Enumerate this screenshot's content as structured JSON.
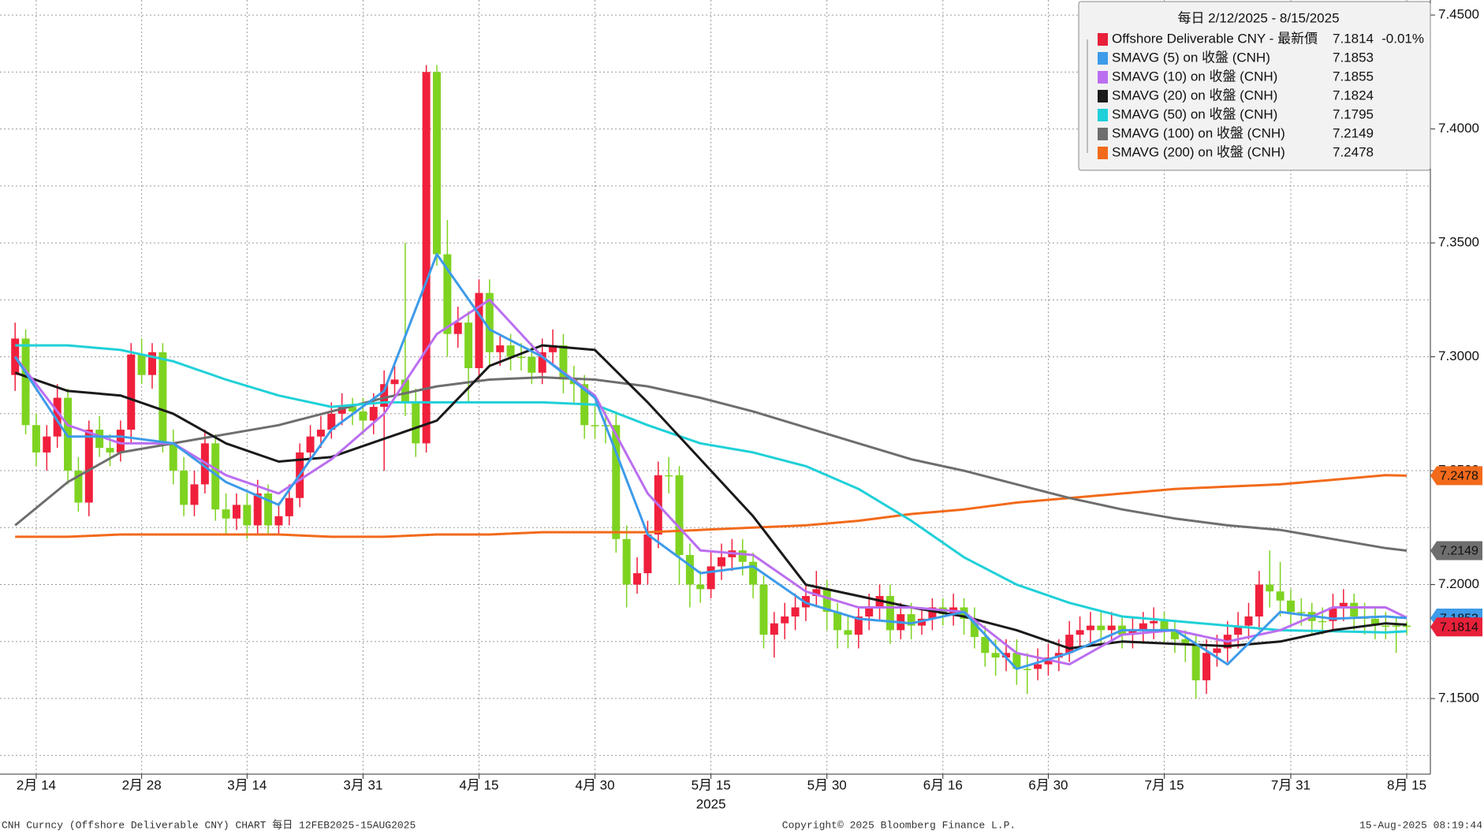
{
  "chart_data": {
    "type": "candlestick",
    "title": "每日 2/12/2025 - 8/15/2025",
    "name": "Offshore Deliverable CNY - 最新價",
    "change": "-0.01%",
    "color": "#e8203a",
    "up_color": "#f0203c",
    "down_color": "#7ed321",
    "x": [
      "2025-02-12",
      "2025-02-13",
      "2025-02-14",
      "2025-02-17",
      "2025-02-18",
      "2025-02-19",
      "2025-02-20",
      "2025-02-21",
      "2025-02-24",
      "2025-02-25",
      "2025-02-26",
      "2025-02-27",
      "2025-02-28",
      "2025-03-03",
      "2025-03-04",
      "2025-03-05",
      "2025-03-06",
      "2025-03-07",
      "2025-03-10",
      "2025-03-11",
      "2025-03-12",
      "2025-03-13",
      "2025-03-14",
      "2025-03-17",
      "2025-03-18",
      "2025-03-19",
      "2025-03-20",
      "2025-03-21",
      "2025-03-24",
      "2025-03-25",
      "2025-03-26",
      "2025-03-27",
      "2025-03-28",
      "2025-03-31",
      "2025-04-01",
      "2025-04-02",
      "2025-04-03",
      "2025-04-04",
      "2025-04-07",
      "2025-04-08",
      "2025-04-09",
      "2025-04-10",
      "2025-04-11",
      "2025-04-14",
      "2025-04-15",
      "2025-04-16",
      "2025-04-17",
      "2025-04-18",
      "2025-04-21",
      "2025-04-22",
      "2025-04-23",
      "2025-04-24",
      "2025-04-25",
      "2025-04-28",
      "2025-04-29",
      "2025-04-30",
      "2025-05-01",
      "2025-05-02",
      "2025-05-05",
      "2025-05-06",
      "2025-05-07",
      "2025-05-08",
      "2025-05-09",
      "2025-05-12",
      "2025-05-13",
      "2025-05-14",
      "2025-05-15",
      "2025-05-16",
      "2025-05-19",
      "2025-05-20",
      "2025-05-21",
      "2025-05-22",
      "2025-05-23",
      "2025-05-26",
      "2025-05-27",
      "2025-05-28",
      "2025-05-29",
      "2025-05-30",
      "2025-06-02",
      "2025-06-03",
      "2025-06-04",
      "2025-06-05",
      "2025-06-06",
      "2025-06-09",
      "2025-06-10",
      "2025-06-11",
      "2025-06-12",
      "2025-06-13",
      "2025-06-16",
      "2025-06-17",
      "2025-06-18",
      "2025-06-19",
      "2025-06-20",
      "2025-06-23",
      "2025-06-24",
      "2025-06-25",
      "2025-06-26",
      "2025-06-27",
      "2025-06-30",
      "2025-07-01",
      "2025-07-02",
      "2025-07-03",
      "2025-07-04",
      "2025-07-07",
      "2025-07-08",
      "2025-07-09",
      "2025-07-10",
      "2025-07-11",
      "2025-07-14",
      "2025-07-15",
      "2025-07-16",
      "2025-07-17",
      "2025-07-18",
      "2025-07-21",
      "2025-07-22",
      "2025-07-23",
      "2025-07-24",
      "2025-07-25",
      "2025-07-28",
      "2025-07-29",
      "2025-07-30",
      "2025-07-31",
      "2025-08-01",
      "2025-08-04",
      "2025-08-05",
      "2025-08-06",
      "2025-08-07",
      "2025-08-08",
      "2025-08-11",
      "2025-08-12",
      "2025-08-13",
      "2025-08-14",
      "2025-08-15"
    ],
    "open": [
      7.292,
      7.308,
      7.27,
      7.258,
      7.265,
      7.282,
      7.25,
      7.236,
      7.268,
      7.26,
      7.258,
      7.268,
      7.301,
      7.292,
      7.302,
      7.262,
      7.25,
      7.235,
      7.244,
      7.262,
      7.233,
      7.229,
      7.235,
      7.226,
      7.24,
      7.226,
      7.23,
      7.238,
      7.258,
      7.265,
      7.268,
      7.275,
      7.278,
      7.276,
      7.272,
      7.278,
      7.288,
      7.29,
      7.28,
      7.262,
      7.425,
      7.345,
      7.31,
      7.315,
      7.295,
      7.328,
      7.302,
      7.305,
      7.3,
      7.3,
      7.293,
      7.302,
      7.305,
      7.29,
      7.288,
      7.27,
      7.27,
      7.27,
      7.22,
      7.2,
      7.205,
      7.222,
      7.248,
      7.248,
      7.213,
      7.2,
      7.198,
      7.208,
      7.212,
      7.215,
      7.21,
      7.2,
      7.178,
      7.183,
      7.186,
      7.19,
      7.195,
      7.198,
      7.188,
      7.18,
      7.178,
      7.186,
      7.19,
      7.195,
      7.18,
      7.187,
      7.182,
      7.185,
      7.19,
      7.187,
      7.19,
      7.185,
      7.177,
      7.17,
      7.168,
      7.17,
      7.163,
      7.163,
      7.165,
      7.168,
      7.17,
      7.178,
      7.18,
      7.182,
      7.18,
      7.182,
      7.178,
      7.18,
      7.183,
      7.184,
      7.18,
      7.176,
      7.174,
      7.158,
      7.17,
      7.172,
      7.178,
      7.182,
      7.186,
      7.2,
      7.197,
      7.193,
      7.188,
      7.188,
      7.184,
      7.184,
      7.19,
      7.192,
      7.186,
      7.185,
      7.182,
      7.182,
      7.182
    ],
    "high": [
      7.315,
      7.312,
      7.275,
      7.27,
      7.288,
      7.286,
      7.256,
      7.272,
      7.274,
      7.266,
      7.272,
      7.306,
      7.308,
      7.306,
      7.306,
      7.268,
      7.256,
      7.25,
      7.268,
      7.266,
      7.24,
      7.24,
      7.24,
      7.246,
      7.244,
      7.236,
      7.244,
      7.262,
      7.27,
      7.274,
      7.28,
      7.284,
      7.282,
      7.282,
      7.284,
      7.294,
      7.296,
      7.35,
      7.286,
      7.428,
      7.428,
      7.36,
      7.322,
      7.32,
      7.334,
      7.334,
      7.31,
      7.31,
      7.306,
      7.306,
      7.308,
      7.312,
      7.31,
      7.296,
      7.292,
      7.278,
      7.276,
      7.276,
      7.226,
      7.212,
      7.228,
      7.254,
      7.256,
      7.252,
      7.218,
      7.206,
      7.214,
      7.218,
      7.22,
      7.22,
      7.214,
      7.204,
      7.188,
      7.192,
      7.196,
      7.2,
      7.206,
      7.202,
      7.192,
      7.186,
      7.19,
      7.196,
      7.2,
      7.2,
      7.192,
      7.192,
      7.19,
      7.194,
      7.194,
      7.196,
      7.194,
      7.19,
      7.182,
      7.176,
      7.176,
      7.176,
      7.17,
      7.172,
      7.174,
      7.176,
      7.184,
      7.186,
      7.188,
      7.188,
      7.188,
      7.186,
      7.186,
      7.188,
      7.19,
      7.188,
      7.184,
      7.18,
      7.178,
      7.176,
      7.178,
      7.184,
      7.188,
      7.192,
      7.206,
      7.215,
      7.21,
      7.198,
      7.194,
      7.192,
      7.19,
      7.196,
      7.198,
      7.196,
      7.192,
      7.19,
      7.188,
      7.186,
      7.184
    ],
    "low": [
      7.285,
      7.266,
      7.252,
      7.25,
      7.26,
      7.244,
      7.232,
      7.23,
      7.256,
      7.252,
      7.254,
      7.262,
      7.288,
      7.286,
      7.258,
      7.244,
      7.23,
      7.23,
      7.24,
      7.228,
      7.222,
      7.224,
      7.22,
      7.222,
      7.222,
      7.222,
      7.226,
      7.234,
      7.254,
      7.26,
      7.264,
      7.27,
      7.27,
      7.266,
      7.266,
      7.25,
      7.282,
      7.274,
      7.256,
      7.258,
      7.34,
      7.3,
      7.304,
      7.28,
      7.29,
      7.296,
      7.296,
      7.294,
      7.294,
      7.288,
      7.288,
      7.296,
      7.284,
      7.28,
      7.264,
      7.264,
      7.262,
      7.214,
      7.19,
      7.196,
      7.2,
      7.216,
      7.24,
      7.2,
      7.19,
      7.192,
      7.194,
      7.202,
      7.206,
      7.204,
      7.194,
      7.172,
      7.168,
      7.176,
      7.18,
      7.184,
      7.19,
      7.18,
      7.172,
      7.172,
      7.172,
      7.18,
      7.184,
      7.174,
      7.176,
      7.176,
      7.178,
      7.18,
      7.182,
      7.182,
      7.178,
      7.172,
      7.164,
      7.16,
      7.162,
      7.156,
      7.152,
      7.158,
      7.16,
      7.162,
      7.166,
      7.172,
      7.174,
      7.174,
      7.174,
      7.172,
      7.172,
      7.174,
      7.176,
      7.174,
      7.17,
      7.166,
      7.15,
      7.152,
      7.164,
      7.166,
      7.172,
      7.176,
      7.18,
      7.19,
      7.186,
      7.182,
      7.182,
      7.178,
      7.178,
      7.18,
      7.184,
      7.18,
      7.178,
      7.176,
      7.176,
      7.17,
      7.178
    ],
    "close": [
      7.308,
      7.27,
      7.258,
      7.265,
      7.282,
      7.25,
      7.236,
      7.268,
      7.26,
      7.258,
      7.268,
      7.301,
      7.292,
      7.302,
      7.262,
      7.25,
      7.235,
      7.244,
      7.262,
      7.233,
      7.229,
      7.235,
      7.226,
      7.24,
      7.226,
      7.23,
      7.238,
      7.258,
      7.265,
      7.268,
      7.275,
      7.278,
      7.276,
      7.272,
      7.278,
      7.288,
      7.29,
      7.28,
      7.262,
      7.425,
      7.345,
      7.31,
      7.315,
      7.295,
      7.328,
      7.302,
      7.305,
      7.3,
      7.3,
      7.293,
      7.302,
      7.305,
      7.29,
      7.288,
      7.27,
      7.27,
      7.27,
      7.22,
      7.2,
      7.205,
      7.222,
      7.248,
      7.248,
      7.213,
      7.2,
      7.198,
      7.208,
      7.212,
      7.215,
      7.21,
      7.2,
      7.178,
      7.183,
      7.186,
      7.19,
      7.195,
      7.198,
      7.188,
      7.18,
      7.178,
      7.186,
      7.19,
      7.195,
      7.18,
      7.187,
      7.182,
      7.185,
      7.19,
      7.187,
      7.19,
      7.185,
      7.177,
      7.17,
      7.168,
      7.17,
      7.163,
      7.163,
      7.165,
      7.168,
      7.17,
      7.178,
      7.18,
      7.182,
      7.18,
      7.182,
      7.178,
      7.18,
      7.183,
      7.184,
      7.18,
      7.176,
      7.174,
      7.158,
      7.17,
      7.172,
      7.178,
      7.182,
      7.186,
      7.2,
      7.197,
      7.193,
      7.188,
      7.188,
      7.184,
      7.184,
      7.19,
      7.192,
      7.186,
      7.185,
      7.182,
      7.182,
      7.182,
      7.1814
    ],
    "ylim": [
      7.1168,
      7.4566
    ],
    "yticks": [
      {
        "value": 7.15,
        "label": "7.1500"
      },
      {
        "value": 7.2,
        "label": "7.2000"
      },
      {
        "value": 7.25,
        "label": "7.2500"
      },
      {
        "value": 7.3,
        "label": "7.3000"
      },
      {
        "value": 7.35,
        "label": "7.3500"
      },
      {
        "value": 7.4,
        "label": "7.4000"
      },
      {
        "value": 7.45,
        "label": "7.4500"
      }
    ],
    "minor_yticks": [
      7.125,
      7.175,
      7.225,
      7.275,
      7.325,
      7.375,
      7.425
    ],
    "xticks": [
      {
        "value": "2025-02-14",
        "label": "2月 14"
      },
      {
        "value": "2025-02-28",
        "label": "2月 28"
      },
      {
        "value": "2025-03-14",
        "label": "3月 14"
      },
      {
        "value": "2025-03-31",
        "label": "3月 31"
      },
      {
        "value": "2025-04-15",
        "label": "4月 15"
      },
      {
        "value": "2025-04-30",
        "label": "4月 30"
      },
      {
        "value": "2025-05-15",
        "label": "5月 15"
      },
      {
        "value": "2025-05-30",
        "label": "5月 30"
      },
      {
        "value": "2025-06-16",
        "label": "6月 16"
      },
      {
        "value": "2025-06-30",
        "label": "6月 30"
      },
      {
        "value": "2025-07-15",
        "label": "7月 15"
      },
      {
        "value": "2025-07-31",
        "label": "7月 31"
      },
      {
        "value": "2025-08-15",
        "label": "8月 15"
      }
    ],
    "x_year": "2025",
    "grid": true,
    "overlays": {
      "x": [
        "2025-02-12",
        "2025-02-19",
        "2025-02-26",
        "2025-03-05",
        "2025-03-12",
        "2025-03-19",
        "2025-03-26",
        "2025-04-02",
        "2025-04-09",
        "2025-04-16",
        "2025-04-23",
        "2025-04-30",
        "2025-05-07",
        "2025-05-14",
        "2025-05-21",
        "2025-05-28",
        "2025-06-04",
        "2025-06-11",
        "2025-06-18",
        "2025-06-25",
        "2025-07-02",
        "2025-07-09",
        "2025-07-16",
        "2025-07-23",
        "2025-07-30",
        "2025-08-06",
        "2025-08-13",
        "2025-08-15"
      ],
      "series": [
        {
          "name": "SMAVG (5)  on 收盤 (CNH)",
          "color": "#3d9be9",
          "values": [
            7.3,
            7.265,
            7.265,
            7.262,
            7.245,
            7.235,
            7.268,
            7.285,
            7.345,
            7.312,
            7.3,
            7.282,
            7.222,
            7.205,
            7.208,
            7.192,
            7.185,
            7.183,
            7.188,
            7.163,
            7.17,
            7.18,
            7.18,
            7.165,
            7.188,
            7.185,
            7.186,
            7.1853
          ]
        },
        {
          "name": "SMAVG (10)  on 收盤 (CNH)",
          "color": "#bb6ef0",
          "values": [
            7.3,
            7.27,
            7.262,
            7.262,
            7.248,
            7.24,
            7.255,
            7.275,
            7.31,
            7.325,
            7.3,
            7.283,
            7.24,
            7.215,
            7.213,
            7.197,
            7.19,
            7.19,
            7.188,
            7.17,
            7.165,
            7.178,
            7.18,
            7.175,
            7.18,
            7.19,
            7.19,
            7.1855
          ]
        },
        {
          "name": "SMAVG (20)  on 收盤 (CNH)",
          "color": "#1a1a1a",
          "values": [
            7.293,
            7.285,
            7.283,
            7.275,
            7.262,
            7.254,
            7.256,
            7.264,
            7.272,
            7.296,
            7.305,
            7.303,
            7.28,
            7.255,
            7.23,
            7.2,
            7.195,
            7.19,
            7.186,
            7.18,
            7.172,
            7.175,
            7.174,
            7.173,
            7.175,
            7.18,
            7.183,
            7.1824
          ]
        },
        {
          "name": "SMAVG (50)  on 收盤 (CNH)",
          "color": "#1fd0d8",
          "values": [
            7.305,
            7.305,
            7.303,
            7.298,
            7.29,
            7.283,
            7.278,
            7.28,
            7.28,
            7.28,
            7.28,
            7.279,
            7.27,
            7.262,
            7.258,
            7.252,
            7.242,
            7.228,
            7.212,
            7.2,
            7.192,
            7.186,
            7.184,
            7.182,
            7.18,
            7.1795,
            7.179,
            7.1795
          ]
        },
        {
          "name": "SMAVG (100)  on 收盤 (CNH)",
          "color": "#6e6e6e",
          "values": [
            7.226,
            7.245,
            7.258,
            7.262,
            7.266,
            7.27,
            7.276,
            7.282,
            7.287,
            7.29,
            7.291,
            7.29,
            7.287,
            7.282,
            7.276,
            7.269,
            7.262,
            7.255,
            7.25,
            7.244,
            7.238,
            7.233,
            7.229,
            7.226,
            7.224,
            7.22,
            7.216,
            7.2149
          ]
        },
        {
          "name": "SMAVG (200)  on 收盤 (CNH)",
          "color": "#f26a1b",
          "values": [
            7.221,
            7.221,
            7.222,
            7.222,
            7.222,
            7.222,
            7.221,
            7.221,
            7.222,
            7.222,
            7.223,
            7.223,
            7.223,
            7.224,
            7.225,
            7.226,
            7.228,
            7.231,
            7.233,
            7.236,
            7.238,
            7.24,
            7.242,
            7.243,
            7.244,
            7.246,
            7.248,
            7.2478
          ]
        }
      ]
    }
  },
  "footer": {
    "left": "CNH Curncy (Offshore Deliverable CNY) CHART  每日 12FEB2025-15AUG2025",
    "center": "Copyright© 2025 Bloomberg Finance L.P.",
    "right": "15-Aug-2025 08:19:44"
  }
}
